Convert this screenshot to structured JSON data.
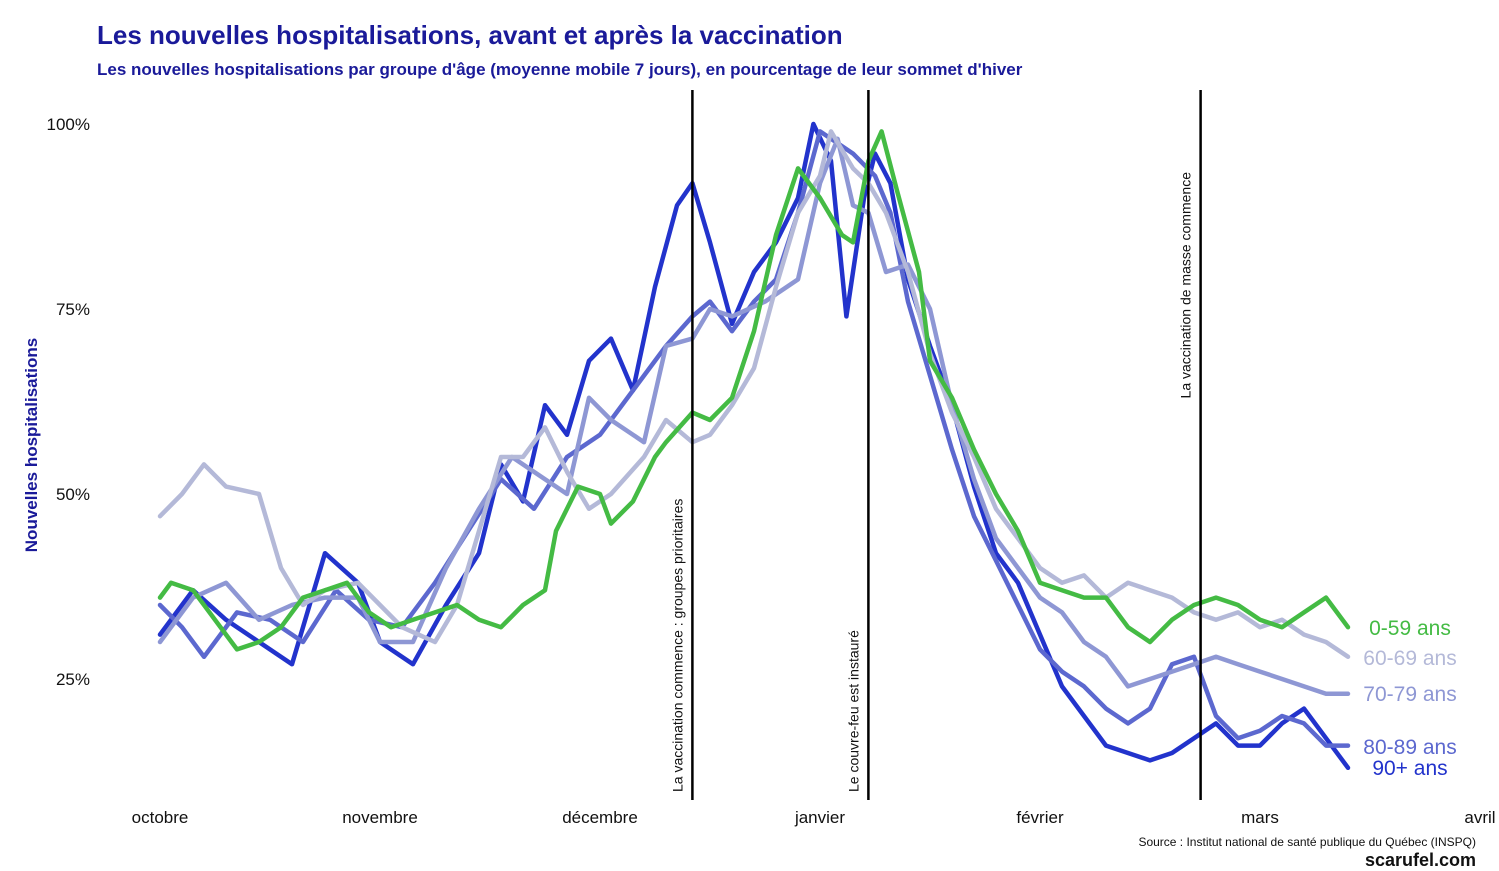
{
  "chart_data": {
    "type": "line",
    "title": "Les nouvelles hospitalisations, avant et après la vaccination",
    "subtitle": "Les nouvelles hospitalisations par groupe d'âge (moyenne mobile 7 jours), en pourcentage de leur sommet d'hiver",
    "ylabel": "Nouvelles hospitalisations",
    "xlabel": "",
    "x_range": [
      0,
      6
    ],
    "ylim": [
      0.09,
      1.05
    ],
    "x_ticks": [
      {
        "x": 0,
        "label": "octobre"
      },
      {
        "x": 1,
        "label": "novembre"
      },
      {
        "x": 2,
        "label": "décembre"
      },
      {
        "x": 3,
        "label": "janvier"
      },
      {
        "x": 4,
        "label": "février"
      },
      {
        "x": 5,
        "label": "mars"
      },
      {
        "x": 6,
        "label": "avril"
      }
    ],
    "y_ticks": [
      {
        "y": 0.25,
        "label": "25%"
      },
      {
        "y": 0.5,
        "label": "50%"
      },
      {
        "y": 0.75,
        "label": "75%"
      },
      {
        "y": 1.0,
        "label": "100%"
      }
    ],
    "annotations": [
      {
        "x": 2.42,
        "label": "La vaccination commence : groupes prioritaires",
        "label_at": "bottom"
      },
      {
        "x": 3.22,
        "label": "Le couvre-feu est instauré",
        "label_at": "bottom"
      },
      {
        "x": 4.73,
        "label": "La vaccination de masse commence",
        "label_at": "top"
      }
    ],
    "series": [
      {
        "name": "90+ ans",
        "color": "#2233cc",
        "x": [
          0,
          0.15,
          0.3,
          0.45,
          0.6,
          0.75,
          0.9,
          1.0,
          1.15,
          1.3,
          1.45,
          1.55,
          1.65,
          1.75,
          1.85,
          1.95,
          2.05,
          2.15,
          2.25,
          2.35,
          2.42,
          2.5,
          2.6,
          2.7,
          2.8,
          2.9,
          2.97,
          3.05,
          3.12,
          3.2,
          3.25,
          3.32,
          3.4,
          3.5,
          3.6,
          3.7,
          3.8,
          3.9,
          4.0,
          4.1,
          4.2,
          4.3,
          4.4,
          4.5,
          4.6,
          4.7,
          4.8,
          4.9,
          5.0,
          5.1,
          5.2,
          5.3,
          5.4
        ],
        "y": [
          0.31,
          0.37,
          0.33,
          0.3,
          0.27,
          0.42,
          0.38,
          0.3,
          0.27,
          0.35,
          0.42,
          0.54,
          0.49,
          0.62,
          0.58,
          0.68,
          0.71,
          0.64,
          0.78,
          0.89,
          0.92,
          0.84,
          0.73,
          0.8,
          0.84,
          0.9,
          1.0,
          0.95,
          0.74,
          0.9,
          0.96,
          0.92,
          0.79,
          0.7,
          0.62,
          0.51,
          0.42,
          0.38,
          0.31,
          0.24,
          0.2,
          0.16,
          0.15,
          0.14,
          0.15,
          0.17,
          0.19,
          0.16,
          0.16,
          0.19,
          0.21,
          0.17,
          0.13
        ]
      },
      {
        "name": "80-89 ans",
        "color": "#5c68cf",
        "x": [
          0,
          0.1,
          0.2,
          0.35,
          0.5,
          0.65,
          0.8,
          0.95,
          1.1,
          1.25,
          1.4,
          1.55,
          1.7,
          1.85,
          2.0,
          2.15,
          2.3,
          2.42,
          2.5,
          2.6,
          2.7,
          2.8,
          2.9,
          3.0,
          3.05,
          3.15,
          3.25,
          3.32,
          3.4,
          3.5,
          3.6,
          3.7,
          3.8,
          3.9,
          4.0,
          4.1,
          4.2,
          4.3,
          4.4,
          4.5,
          4.6,
          4.7,
          4.8,
          4.9,
          5.0,
          5.1,
          5.2,
          5.3,
          5.4
        ],
        "y": [
          0.35,
          0.32,
          0.28,
          0.34,
          0.33,
          0.3,
          0.37,
          0.33,
          0.32,
          0.38,
          0.45,
          0.52,
          0.48,
          0.55,
          0.58,
          0.64,
          0.7,
          0.74,
          0.76,
          0.72,
          0.76,
          0.79,
          0.88,
          0.99,
          0.98,
          0.96,
          0.93,
          0.88,
          0.76,
          0.66,
          0.56,
          0.47,
          0.41,
          0.35,
          0.29,
          0.26,
          0.24,
          0.21,
          0.19,
          0.21,
          0.27,
          0.28,
          0.2,
          0.17,
          0.18,
          0.2,
          0.19,
          0.16,
          0.16
        ]
      },
      {
        "name": "70-79 ans",
        "color": "#8e97d4",
        "x": [
          0,
          0.15,
          0.3,
          0.45,
          0.6,
          0.75,
          0.9,
          1.0,
          1.15,
          1.3,
          1.45,
          1.6,
          1.75,
          1.85,
          1.95,
          2.05,
          2.2,
          2.3,
          2.42,
          2.5,
          2.6,
          2.75,
          2.9,
          3.0,
          3.08,
          3.15,
          3.22,
          3.3,
          3.4,
          3.5,
          3.6,
          3.7,
          3.8,
          3.9,
          4.0,
          4.1,
          4.2,
          4.3,
          4.4,
          4.5,
          4.6,
          4.7,
          4.8,
          4.9,
          5.0,
          5.1,
          5.2,
          5.3,
          5.4
        ],
        "y": [
          0.3,
          0.36,
          0.38,
          0.33,
          0.35,
          0.36,
          0.36,
          0.3,
          0.3,
          0.4,
          0.48,
          0.55,
          0.52,
          0.5,
          0.63,
          0.6,
          0.57,
          0.7,
          0.71,
          0.75,
          0.74,
          0.76,
          0.79,
          0.92,
          0.98,
          0.89,
          0.88,
          0.8,
          0.81,
          0.75,
          0.62,
          0.52,
          0.44,
          0.4,
          0.36,
          0.34,
          0.3,
          0.28,
          0.24,
          0.25,
          0.26,
          0.27,
          0.28,
          0.27,
          0.26,
          0.25,
          0.24,
          0.23,
          0.23
        ]
      },
      {
        "name": "60-69 ans",
        "color": "#b4b9d8",
        "x": [
          0,
          0.1,
          0.2,
          0.3,
          0.45,
          0.55,
          0.65,
          0.75,
          0.9,
          1.0,
          1.1,
          1.25,
          1.35,
          1.45,
          1.55,
          1.65,
          1.75,
          1.85,
          1.95,
          2.05,
          2.2,
          2.3,
          2.42,
          2.5,
          2.6,
          2.7,
          2.8,
          2.9,
          3.0,
          3.05,
          3.15,
          3.22,
          3.3,
          3.4,
          3.5,
          3.6,
          3.7,
          3.8,
          3.9,
          4.0,
          4.1,
          4.2,
          4.3,
          4.4,
          4.5,
          4.6,
          4.7,
          4.8,
          4.9,
          5.0,
          5.1,
          5.2,
          5.3,
          5.4
        ],
        "y": [
          0.47,
          0.5,
          0.54,
          0.51,
          0.5,
          0.4,
          0.35,
          0.37,
          0.38,
          0.35,
          0.32,
          0.3,
          0.35,
          0.45,
          0.55,
          0.55,
          0.59,
          0.53,
          0.48,
          0.5,
          0.55,
          0.6,
          0.57,
          0.58,
          0.62,
          0.67,
          0.78,
          0.88,
          0.93,
          0.99,
          0.94,
          0.92,
          0.88,
          0.8,
          0.69,
          0.61,
          0.55,
          0.48,
          0.44,
          0.4,
          0.38,
          0.39,
          0.36,
          0.38,
          0.37,
          0.36,
          0.34,
          0.33,
          0.34,
          0.32,
          0.33,
          0.31,
          0.3,
          0.28
        ]
      },
      {
        "name": "0-59 ans",
        "color": "#44bb44",
        "x": [
          0,
          0.05,
          0.15,
          0.25,
          0.35,
          0.45,
          0.55,
          0.65,
          0.75,
          0.85,
          0.95,
          1.05,
          1.15,
          1.25,
          1.35,
          1.45,
          1.55,
          1.65,
          1.75,
          1.8,
          1.9,
          2.0,
          2.05,
          2.15,
          2.25,
          2.3,
          2.42,
          2.5,
          2.6,
          2.7,
          2.8,
          2.9,
          3.0,
          3.1,
          3.15,
          3.22,
          3.28,
          3.35,
          3.45,
          3.5,
          3.6,
          3.7,
          3.8,
          3.9,
          4.0,
          4.1,
          4.2,
          4.3,
          4.4,
          4.5,
          4.6,
          4.7,
          4.8,
          4.9,
          5.0,
          5.1,
          5.2,
          5.3,
          5.4
        ],
        "y": [
          0.36,
          0.38,
          0.37,
          0.33,
          0.29,
          0.3,
          0.32,
          0.36,
          0.37,
          0.38,
          0.34,
          0.32,
          0.33,
          0.34,
          0.35,
          0.33,
          0.32,
          0.35,
          0.37,
          0.45,
          0.51,
          0.5,
          0.46,
          0.49,
          0.55,
          0.57,
          0.61,
          0.6,
          0.63,
          0.72,
          0.85,
          0.94,
          0.9,
          0.85,
          0.84,
          0.95,
          0.99,
          0.91,
          0.8,
          0.68,
          0.63,
          0.56,
          0.5,
          0.45,
          0.38,
          0.37,
          0.36,
          0.36,
          0.32,
          0.3,
          0.33,
          0.35,
          0.36,
          0.35,
          0.33,
          0.32,
          0.34,
          0.36,
          0.32
        ]
      }
    ],
    "series_labels": [
      "0-59 ans",
      "60-69 ans",
      "70-79 ans",
      "80-89 ans",
      "90+ ans"
    ]
  },
  "source": "Source : Institut national de santé publique du Québec (INSPQ)",
  "brand": "scarufel.com"
}
